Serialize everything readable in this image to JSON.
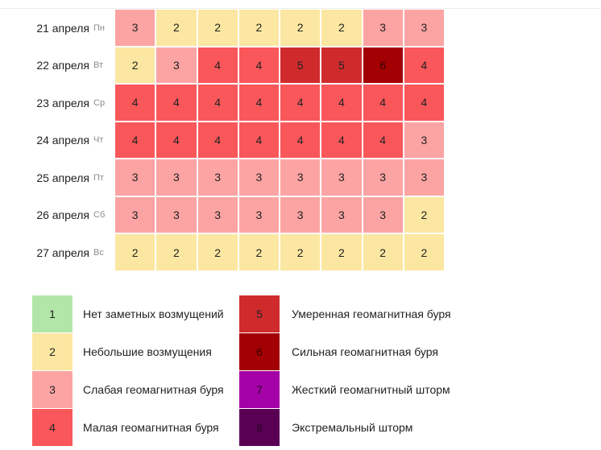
{
  "chart_data": {
    "type": "heatmap",
    "rows": [
      {
        "date": "21 апреля",
        "weekday": "Пн",
        "values": [
          3,
          2,
          2,
          2,
          2,
          2,
          3,
          3
        ]
      },
      {
        "date": "22 апреля",
        "weekday": "Вт",
        "values": [
          2,
          3,
          4,
          4,
          5,
          5,
          6,
          4
        ]
      },
      {
        "date": "23 апреля",
        "weekday": "Ср",
        "values": [
          4,
          4,
          4,
          4,
          4,
          4,
          4,
          4
        ]
      },
      {
        "date": "24 апреля",
        "weekday": "Чт",
        "values": [
          4,
          4,
          4,
          4,
          4,
          4,
          4,
          3
        ]
      },
      {
        "date": "25 апреля",
        "weekday": "Пт",
        "values": [
          3,
          3,
          3,
          3,
          3,
          3,
          3,
          3
        ]
      },
      {
        "date": "26 апреля",
        "weekday": "Сб",
        "values": [
          3,
          3,
          3,
          3,
          3,
          3,
          3,
          2
        ]
      },
      {
        "date": "27 апреля",
        "weekday": "Вс",
        "values": [
          2,
          2,
          2,
          2,
          2,
          2,
          2,
          2
        ]
      }
    ],
    "legend": [
      {
        "level": 1,
        "label": "Нет заметных возмущений",
        "color": "#b2e6a8"
      },
      {
        "level": 2,
        "label": "Небольшие возмущения",
        "color": "#fbe7a1"
      },
      {
        "level": 3,
        "label": "Слабая геомагнитная буря",
        "color": "#fca4a3"
      },
      {
        "level": 4,
        "label": "Малая геомагнитная буря",
        "color": "#f9575a"
      },
      {
        "level": 5,
        "label": "Умеренная геомагнитная буря",
        "color": "#cf2b2d"
      },
      {
        "level": 6,
        "label": "Сильная геомагнитная буря",
        "color": "#a30003"
      },
      {
        "level": 7,
        "label": "Жесткий геомагнитный шторм",
        "color": "#a401a6"
      },
      {
        "level": 8,
        "label": "Экстремальный шторм",
        "color": "#590055"
      }
    ]
  }
}
